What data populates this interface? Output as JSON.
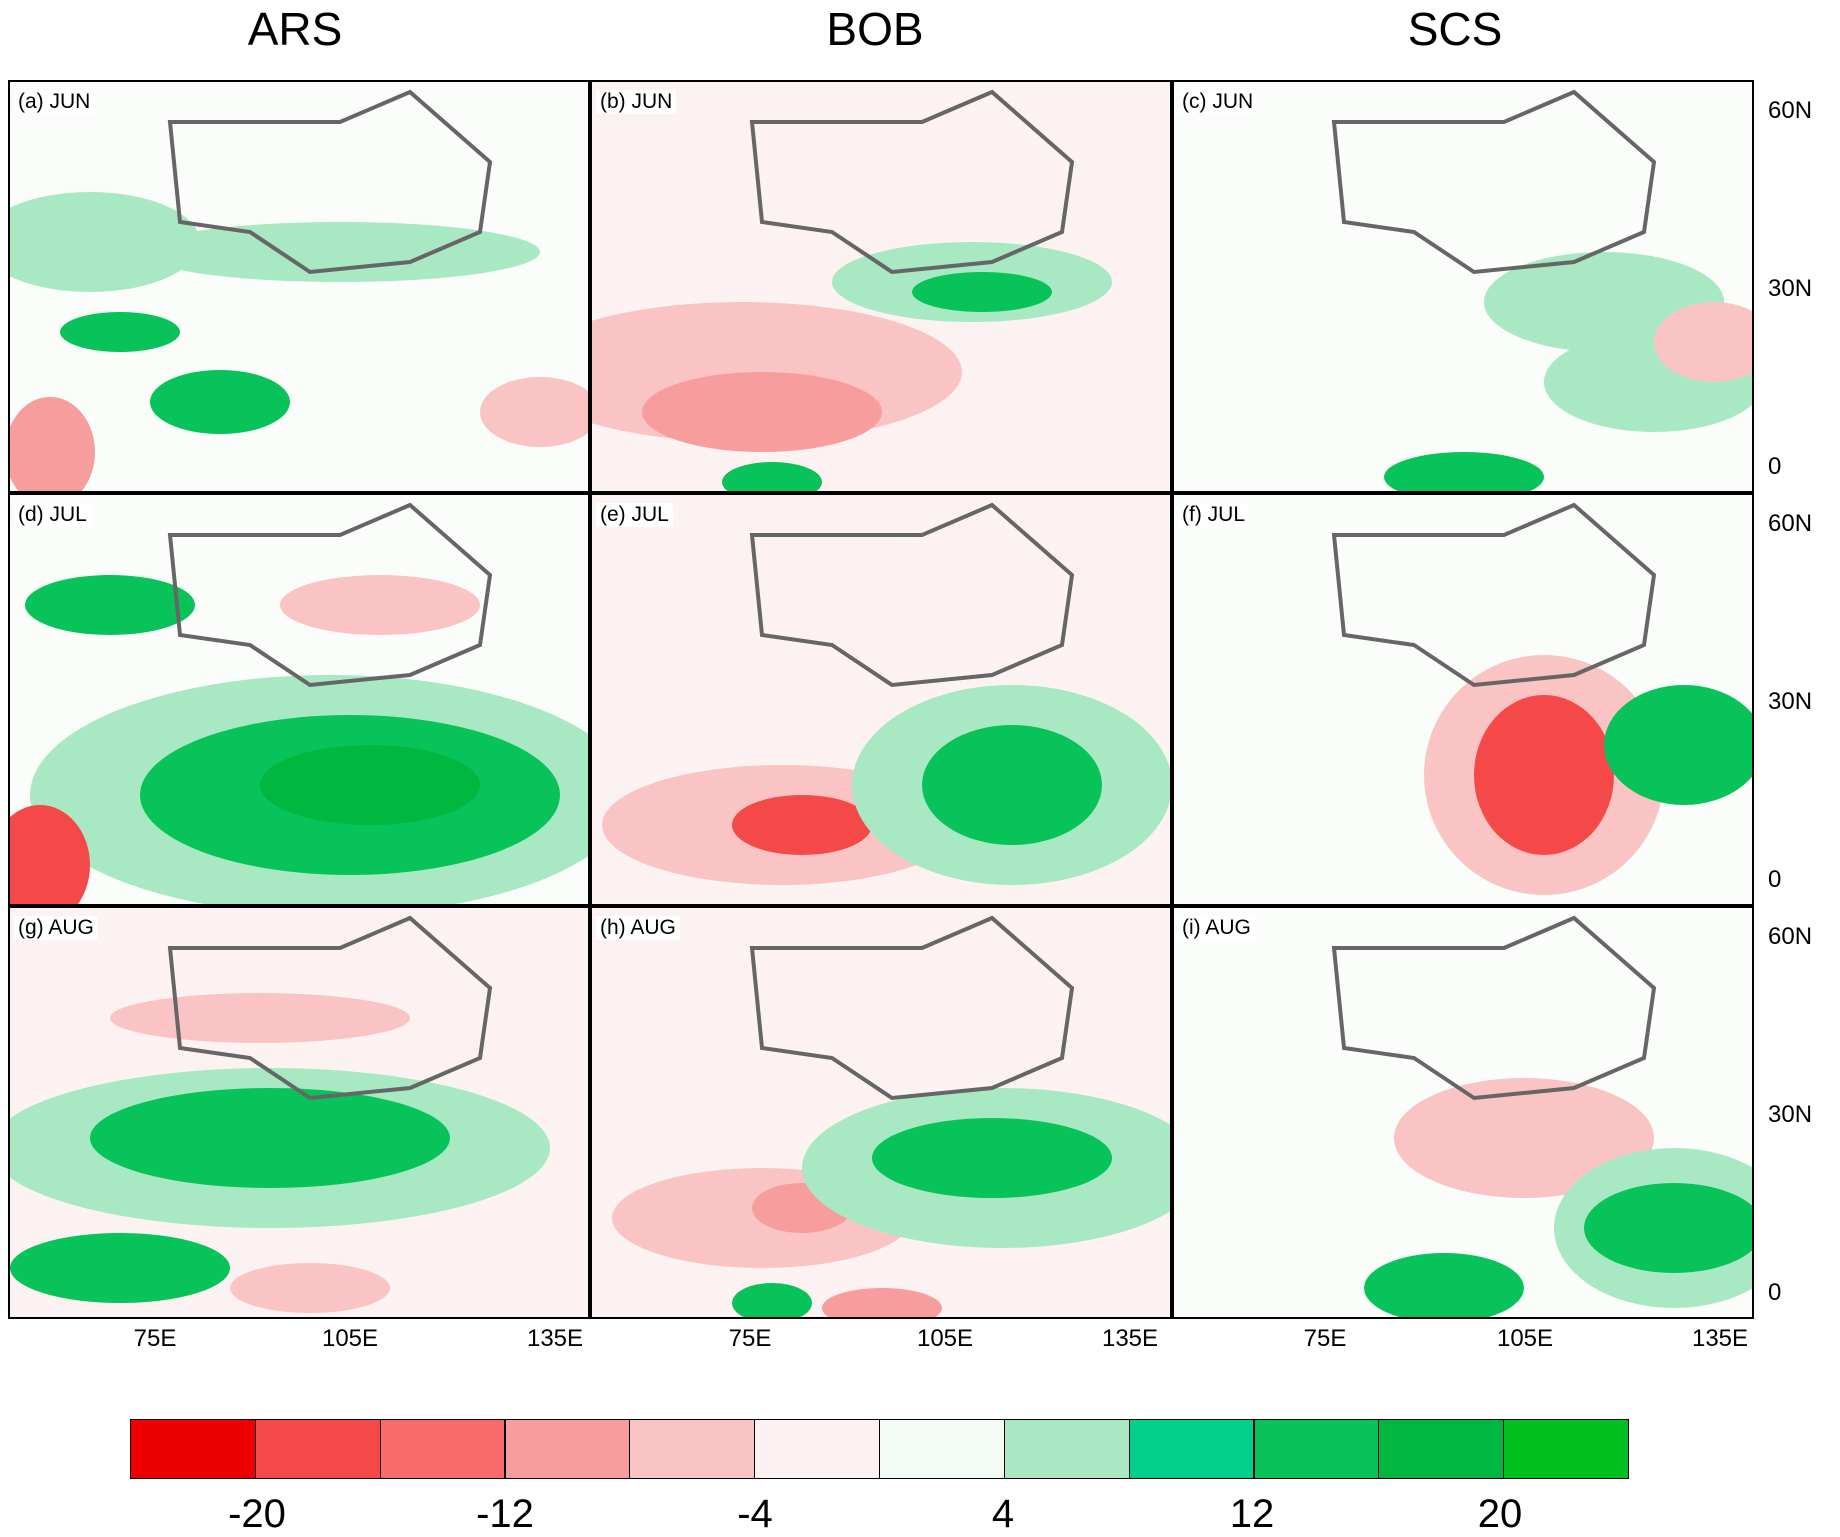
{
  "column_titles": [
    "ARS",
    "BOB",
    "SCS"
  ],
  "panels": [
    {
      "label": "(a) JUN"
    },
    {
      "label": "(b) JUN"
    },
    {
      "label": "(c) JUN"
    },
    {
      "label": "(d) JUL"
    },
    {
      "label": "(e) JUL"
    },
    {
      "label": "(f) JUL"
    },
    {
      "label": "(g) AUG"
    },
    {
      "label": "(h) AUG"
    },
    {
      "label": "(i) AUG"
    }
  ],
  "lat_ticks": [
    "60N",
    "30N",
    "0"
  ],
  "lon_ticks": [
    "75E",
    "105E",
    "135E"
  ],
  "colorbar": {
    "colors": [
      "#ee0000",
      "#f54848",
      "#fa6a6a",
      "#f79d9d",
      "#fac4c4",
      "#fdf2f2",
      "#f3fbf4",
      "#a8e8c2",
      "#00d08a",
      "#08c25a",
      "#00b840",
      "#00c020"
    ],
    "labels": [
      "-20",
      "-12",
      "-4",
      "4",
      "12",
      "20"
    ]
  }
}
